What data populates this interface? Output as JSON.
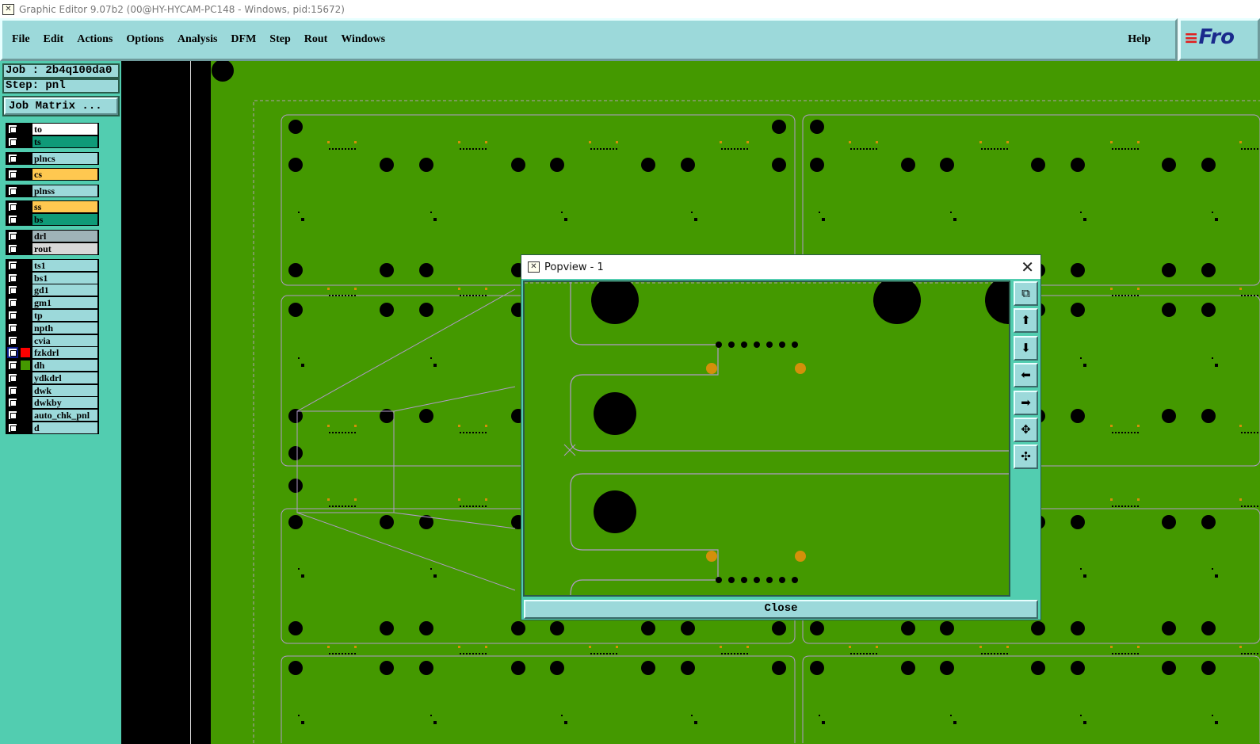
{
  "window": {
    "title": "Graphic Editor 9.07b2 (00@HY-HYCAM-PC148 - Windows, pid:15672)"
  },
  "menu": {
    "items": [
      "File",
      "Edit",
      "Actions",
      "Options",
      "Analysis",
      "DFM",
      "Step",
      "Rout",
      "Windows"
    ],
    "help": "Help",
    "logo": "Fro"
  },
  "job": {
    "job_label": "Job : 2b4q100da0",
    "step_label": "Step: pnl",
    "job_matrix": "Job Matrix ..."
  },
  "layers": [
    {
      "name": "to",
      "color": "#ffffff"
    },
    {
      "name": "ts",
      "color": "#0f9a78"
    },
    {
      "name": "plncs",
      "color": "#9cd9da"
    },
    {
      "name": "cs",
      "color": "#ffc850"
    },
    {
      "name": "plnss",
      "color": "#9cd9da"
    },
    {
      "name": "ss",
      "color": "#ffc850"
    },
    {
      "name": "bs",
      "color": "#0f9a78"
    },
    {
      "name": "drl",
      "color": "#9fb3b8"
    },
    {
      "name": "rout",
      "color": "#d8d8d8"
    },
    {
      "name": "ts1",
      "color": "#9cd9da"
    },
    {
      "name": "bs1",
      "color": "#9cd9da"
    },
    {
      "name": "gd1",
      "color": "#9cd9da"
    },
    {
      "name": "gm1",
      "color": "#9cd9da"
    },
    {
      "name": "tp",
      "color": "#9cd9da"
    },
    {
      "name": "npth",
      "color": "#9cd9da"
    },
    {
      "name": "cvia",
      "color": "#9cd9da"
    },
    {
      "name": "fzkdrl",
      "color": "#9cd9da",
      "display_color": "#ff0000",
      "active": true
    },
    {
      "name": "dh",
      "color": "#9cd9da",
      "display_color": "#449900"
    },
    {
      "name": "ydkdrl",
      "color": "#9cd9da"
    },
    {
      "name": "dwk",
      "color": "#9cd9da"
    },
    {
      "name": "dwkby",
      "color": "#9cd9da"
    },
    {
      "name": "auto_chk_pnl",
      "color": "#9cd9da"
    },
    {
      "name": "d",
      "color": "#9cd9da"
    }
  ],
  "popview": {
    "title": "Popview - 1",
    "close": "Close",
    "tools": [
      "zoom-home-icon",
      "pan-up-icon",
      "pan-down-icon",
      "pan-left-icon",
      "pan-right-icon",
      "zoom-in-icon",
      "zoom-out-icon"
    ]
  },
  "colors": {
    "board": "#449900",
    "pad": "#000000",
    "orange_pad": "#d4900a",
    "outline": "#b09ac8",
    "panel": "#9cd9da"
  }
}
